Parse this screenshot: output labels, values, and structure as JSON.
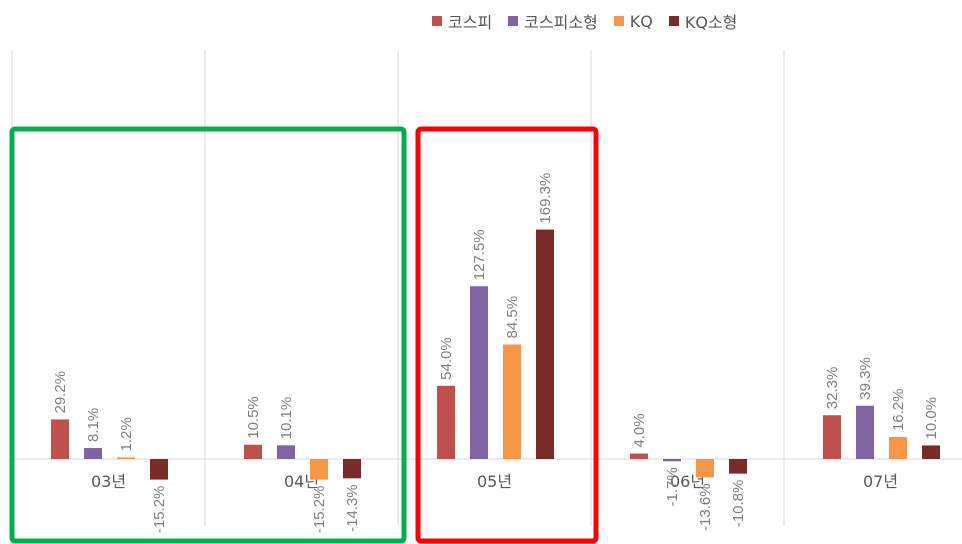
{
  "chart_data": {
    "type": "bar",
    "categories": [
      "03년",
      "04년",
      "05년",
      "06년",
      "07년"
    ],
    "series": [
      {
        "name": "코스피",
        "color": "#C0504D",
        "values": [
          29.2,
          10.5,
          54.0,
          4.0,
          32.3
        ]
      },
      {
        "name": "코스피소형",
        "color": "#8064A2",
        "values": [
          8.1,
          10.1,
          127.5,
          -1.7,
          39.3
        ]
      },
      {
        "name": "KQ",
        "color": "#F79646",
        "values": [
          1.2,
          -15.2,
          84.5,
          -13.6,
          16.2
        ]
      },
      {
        "name": "KQ소형",
        "color": "#772C2A",
        "values": [
          -15.2,
          -14.3,
          169.3,
          -10.8,
          10.0
        ]
      }
    ],
    "data_labels": [
      [
        "29.2%",
        "10.5%",
        "54.0%",
        "4.0%",
        "32.3%"
      ],
      [
        "8.1%",
        "10.1%",
        "127.5%",
        "-1.7%",
        "39.3%"
      ],
      [
        "1.2%",
        "-15.2%",
        "84.5%",
        "-13.6%",
        "16.2%"
      ],
      [
        "-15.2%",
        "-14.3%",
        "169.3%",
        "-10.8%",
        "10.0%"
      ]
    ],
    "legend_position": "top-right",
    "grid": "vertical-lines",
    "highlight_boxes": [
      {
        "categories": [
          "03년",
          "04년"
        ],
        "color": "#00B050"
      },
      {
        "categories": [
          "05년"
        ],
        "color": "#FF0000"
      }
    ]
  }
}
